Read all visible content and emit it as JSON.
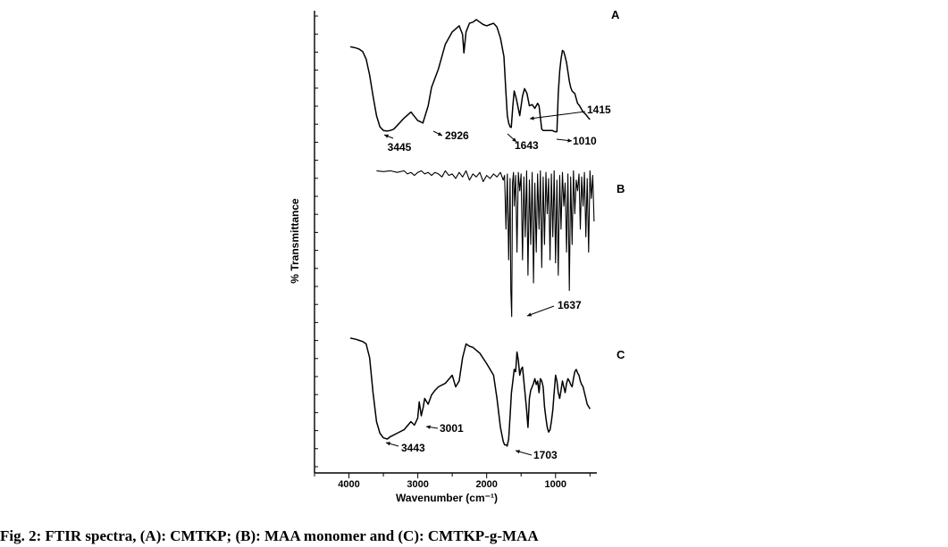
{
  "caption": "Fig. 2: FTIR spectra, (A): CMTKP; (B): MAA monomer and (C): CMTKP-g-MAA",
  "chart_data": {
    "type": "line",
    "title": "",
    "xlabel": "Wavenumber (cm⁻¹)",
    "ylabel": "% Transmittance",
    "xlim": [
      4500,
      400
    ],
    "x_reversed": true,
    "x_ticks": [
      4000,
      3000,
      2000,
      1000
    ],
    "y_ticks_shown": false,
    "grid": false,
    "panels": [
      {
        "label": "A",
        "series": [
          {
            "x": [
              3980,
              3900,
              3850,
              3800,
              3750,
              3700,
              3650,
              3600,
              3550,
              3500,
              3445,
              3400,
              3350,
              3300,
              3200,
              3100,
              3000,
              2960,
              2926,
              2850,
              2800,
              2700,
              2600,
              2500,
              2400,
              2350,
              2330,
              2300,
              2250,
              2200,
              2150,
              2100,
              2050,
              2000,
              1950,
              1900,
              1850,
              1800,
              1750,
              1720,
              1700,
              1680,
              1660,
              1643,
              1620,
              1600,
              1570,
              1520,
              1480,
              1450,
              1415,
              1380,
              1340,
              1300,
              1260,
              1240,
              1200,
              1180,
              1160,
              1100,
              1050,
              1010,
              980,
              960,
              940,
              920,
              900,
              880,
              860,
              840,
              800,
              780,
              760,
              720,
              680,
              650,
              600,
              560,
              520,
              500
            ],
            "y": [
              78,
              77,
              76,
              74,
              68,
              55,
              38,
              22,
              13,
              10,
              9.5,
              10,
              11,
              14,
              20,
              25,
              18,
              17,
              16,
              30,
              45,
              60,
              80,
              90,
              95,
              88,
              73,
              90,
              97,
              98,
              100,
              98,
              96,
              95,
              96,
              97,
              94,
              85,
              70,
              40,
              22,
              16,
              13,
              12.5,
              30,
              42,
              36,
              22,
              38,
              44,
              40,
              30,
              31,
              28,
              32,
              30,
              11,
              10,
              10,
              10,
              10,
              9,
              9,
              40,
              58,
              68,
              75,
              74,
              70,
              65,
              50,
              45,
              42,
              40,
              32,
              30,
              25,
              23,
              20,
              19
            ]
          }
        ],
        "annotations": [
          {
            "text": "3445",
            "x": 3445
          },
          {
            "text": "2926",
            "x": 2926
          },
          {
            "text": "1643",
            "x": 1643
          },
          {
            "text": "1415",
            "x": 1415
          },
          {
            "text": "1010",
            "x": 1010
          }
        ]
      },
      {
        "label": "B",
        "series": [
          {
            "x": [
              3600,
              3500,
              3400,
              3300,
              3200,
              3150,
              3100,
              3050,
              3000,
              2950,
              2900,
              2850,
              2800,
              2750,
              2700,
              2650,
              2600,
              2550,
              2500,
              2450,
              2400,
              2350,
              2300,
              2250,
              2200,
              2150,
              2100,
              2050,
              2000,
              1950,
              1900,
              1850,
              1800,
              1760,
              1740,
              1720,
              1700,
              1680,
              1660,
              1650,
              1637,
              1625,
              1610,
              1600,
              1580,
              1560,
              1540,
              1520,
              1500,
              1480,
              1460,
              1440,
              1420,
              1400,
              1380,
              1360,
              1340,
              1320,
              1300,
              1280,
              1260,
              1240,
              1220,
              1200,
              1180,
              1160,
              1140,
              1120,
              1100,
              1080,
              1060,
              1040,
              1020,
              1000,
              980,
              960,
              940,
              920,
              900,
              880,
              860,
              840,
              820,
              800,
              780,
              760,
              740,
              720,
              700,
              680,
              660,
              640,
              620,
              600,
              580,
              560,
              540,
              520,
              500,
              480,
              460,
              440
            ],
            "y": [
              98,
              97.5,
              98,
              97,
              98,
              96,
              97,
              95,
              97,
              98,
              96,
              97,
              95,
              97,
              96,
              94,
              98,
              95,
              96,
              93,
              97,
              94,
              98,
              92,
              96,
              94,
              97,
              91,
              95,
              93,
              96,
              94,
              97,
              92,
              95,
              60,
              96,
              40,
              93,
              20,
              3,
              90,
              97,
              75,
              95,
              45,
              97,
              85,
              96,
              40,
              94,
              55,
              98,
              30,
              92,
              50,
              97,
              25,
              90,
              45,
              96,
              60,
              98,
              35,
              94,
              50,
              97,
              70,
              93,
              40,
              96,
              55,
              98,
              38,
              92,
              30,
              95,
              60,
              97,
              75,
              90,
              45,
              96,
              20,
              94,
              50,
              98,
              70,
              92,
              85,
              96,
              60,
              94,
              75,
              97,
              55,
              93,
              45,
              98,
              80,
              95,
              65
            ]
          }
        ],
        "annotations": [
          {
            "text": "1637",
            "x": 1637
          }
        ]
      },
      {
        "label": "C",
        "series": [
          {
            "x": [
              3980,
              3900,
              3850,
              3800,
              3750,
              3700,
              3650,
              3600,
              3550,
              3500,
              3443,
              3400,
              3300,
              3200,
              3100,
              3050,
              3001,
              2980,
              2950,
              2920,
              2900,
              2850,
              2800,
              2750,
              2700,
              2600,
              2500,
              2450,
              2400,
              2350,
              2300,
              2250,
              2200,
              2100,
              2000,
              1900,
              1850,
              1800,
              1760,
              1740,
              1720,
              1703,
              1680,
              1660,
              1640,
              1620,
              1600,
              1580,
              1560,
              1540,
              1520,
              1500,
              1480,
              1460,
              1440,
              1420,
              1400,
              1380,
              1360,
              1340,
              1320,
              1300,
              1280,
              1260,
              1240,
              1220,
              1200,
              1180,
              1160,
              1140,
              1120,
              1100,
              1080,
              1060,
              1040,
              1020,
              1000,
              980,
              960,
              940,
              920,
              900,
              880,
              860,
              840,
              820,
              800,
              780,
              760,
              740,
              720,
              700,
              680,
              660,
              640,
              620,
              600,
              580,
              560,
              540,
              520,
              500
            ],
            "y": [
              97,
              96,
              95,
              94,
              92,
              80,
              50,
              25,
              15,
              11,
              10,
              12,
              15,
              18,
              25,
              22,
              28,
              42,
              30,
              38,
              45,
              40,
              48,
              52,
              55,
              58,
              65,
              55,
              60,
              80,
              92,
              90,
              89,
              84,
              75,
              65,
              45,
              20,
              8,
              5,
              5,
              4,
              10,
              30,
              50,
              60,
              70,
              68,
              85,
              78,
              65,
              70,
              72,
              60,
              48,
              35,
              20,
              45,
              52,
              55,
              58,
              62,
              57,
              60,
              50,
              62,
              60,
              55,
              38,
              28,
              20,
              16,
              18,
              25,
              35,
              50,
              65,
              60,
              50,
              45,
              52,
              60,
              55,
              50,
              58,
              62,
              60,
              57,
              55,
              62,
              68,
              70,
              67,
              65,
              60,
              57,
              55,
              50,
              45,
              40,
              38,
              36
            ]
          }
        ],
        "annotations": [
          {
            "text": "3443",
            "x": 3443
          },
          {
            "text": "3001",
            "x": 3001
          },
          {
            "text": "1703",
            "x": 1703
          }
        ]
      }
    ]
  }
}
